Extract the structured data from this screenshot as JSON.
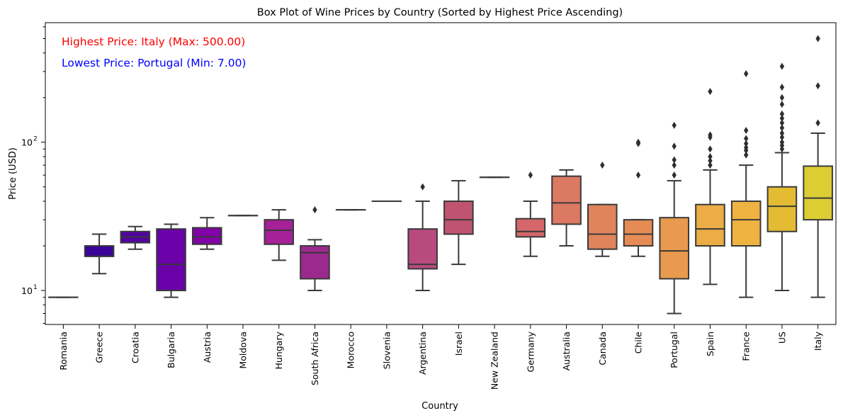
{
  "chart_data": {
    "type": "box",
    "title": "Box Plot of Wine Prices by Country (Sorted by Highest Price Ascending)",
    "xlabel": "Country",
    "ylabel": "Price (USD)",
    "yscale": "log",
    "ylim": [
      5.9,
      640
    ],
    "yticks": [
      {
        "value": 10,
        "base": "10",
        "exp": "1"
      },
      {
        "value": 100,
        "base": "10",
        "exp": "2"
      }
    ],
    "grid": false,
    "annotations": [
      {
        "text": "Highest Price: Italy (Max: 500.00)",
        "color": "#ff0000"
      },
      {
        "text": "Lowest Price: Portugal (Min: 7.00)",
        "color": "#0000ff"
      }
    ],
    "categories": [
      "Romania",
      "Greece",
      "Croatia",
      "Bulgaria",
      "Austria",
      "Moldova",
      "Hungary",
      "South Africa",
      "Morocco",
      "Slovenia",
      "Argentina",
      "Israel",
      "New Zealand",
      "Germany",
      "Australia",
      "Canada",
      "Chile",
      "Portugal",
      "Spain",
      "France",
      "US",
      "Italy"
    ],
    "boxes": [
      {
        "category": "Romania",
        "color": "#120787",
        "whislo": 9,
        "q1": 9,
        "med": 9,
        "q3": 9,
        "whishi": 9,
        "fliers": []
      },
      {
        "category": "Greece",
        "color": "#3a049a",
        "whislo": 13,
        "q1": 17,
        "med": 17,
        "q3": 20,
        "whishi": 24,
        "fliers": []
      },
      {
        "category": "Croatia",
        "color": "#5302a3",
        "whislo": 19,
        "q1": 21,
        "med": 23,
        "q3": 25,
        "whishi": 27,
        "fliers": []
      },
      {
        "category": "Bulgaria",
        "color": "#6a00a8",
        "whislo": 9,
        "q1": 10,
        "med": 15,
        "q3": 26,
        "whishi": 28,
        "fliers": []
      },
      {
        "category": "Austria",
        "color": "#8004a8",
        "whislo": 19,
        "q1": 20.5,
        "med": 23,
        "q3": 26.5,
        "whishi": 31,
        "fliers": []
      },
      {
        "category": "Moldova",
        "color": "#9511a1",
        "whislo": 32,
        "q1": 32,
        "med": 32,
        "q3": 32,
        "whishi": 32,
        "fliers": []
      },
      {
        "category": "Hungary",
        "color": "#a62098",
        "whislo": 16,
        "q1": 20.5,
        "med": 25.5,
        "q3": 30,
        "whishi": 35,
        "fliers": []
      },
      {
        "category": "South Africa",
        "color": "#9c2a8e",
        "whislo": 10,
        "q1": 12,
        "med": 18,
        "q3": 20,
        "whishi": 22,
        "fliers": [
          35
        ]
      },
      {
        "category": "Morocco",
        "color": "#a83a8a",
        "whislo": 35,
        "q1": 35,
        "med": 35,
        "q3": 35,
        "whishi": 35,
        "fliers": []
      },
      {
        "category": "Slovenia",
        "color": "#b23f86",
        "whislo": 40,
        "q1": 40,
        "med": 40,
        "q3": 40,
        "whishi": 40,
        "fliers": []
      },
      {
        "category": "Argentina",
        "color": "#b84a7e",
        "whislo": 10,
        "q1": 14,
        "med": 15,
        "q3": 26,
        "whishi": 40,
        "fliers": [
          50
        ]
      },
      {
        "category": "Israel",
        "color": "#c05470",
        "whislo": 15,
        "q1": 24,
        "med": 30,
        "q3": 40,
        "whishi": 55,
        "fliers": []
      },
      {
        "category": "New Zealand",
        "color": "#cc5a6b",
        "whislo": 58,
        "q1": 58,
        "med": 58,
        "q3": 58,
        "whishi": 58,
        "fliers": []
      },
      {
        "category": "Germany",
        "color": "#d5676a",
        "whislo": 17,
        "q1": 23,
        "med": 25,
        "q3": 30.5,
        "whishi": 40,
        "fliers": [
          60
        ]
      },
      {
        "category": "Australia",
        "color": "#dc7962",
        "whislo": 20,
        "q1": 28,
        "med": 39,
        "q3": 59,
        "whishi": 65,
        "fliers": []
      },
      {
        "category": "Canada",
        "color": "#e0845d",
        "whislo": 17,
        "q1": 19,
        "med": 24,
        "q3": 38,
        "whishi": 38,
        "fliers": [
          70
        ]
      },
      {
        "category": "Chile",
        "color": "#e58c55",
        "whislo": 17,
        "q1": 20,
        "med": 24,
        "q3": 30,
        "whishi": 30,
        "fliers": [
          60,
          98,
          100
        ]
      },
      {
        "category": "Portugal",
        "color": "#e99a4e",
        "whislo": 7,
        "q1": 12,
        "med": 18.5,
        "q3": 31,
        "whishi": 55,
        "fliers": [
          60,
          70,
          76,
          94,
          130
        ]
      },
      {
        "category": "Spain",
        "color": "#ecac46",
        "whislo": 11,
        "q1": 20,
        "med": 26,
        "q3": 38,
        "whishi": 65,
        "fliers": [
          70,
          75,
          80,
          90,
          108,
          112,
          220
        ]
      },
      {
        "category": "France",
        "color": "#efb342",
        "whislo": 9,
        "q1": 20,
        "med": 30,
        "q3": 40,
        "whishi": 70,
        "fliers": [
          82,
          88,
          92,
          98,
          106,
          120,
          290
        ]
      },
      {
        "category": "US",
        "color": "#e3bc34",
        "whislo": 10,
        "q1": 25,
        "med": 37,
        "q3": 50,
        "whishi": 85,
        "fliers": [
          90,
          95,
          100,
          108,
          115,
          125,
          135,
          145,
          155,
          180,
          200,
          235,
          325
        ]
      },
      {
        "category": "Italy",
        "color": "#dccd35",
        "whislo": 9,
        "q1": 30,
        "med": 42,
        "q3": 69,
        "whishi": 115,
        "fliers": [
          135,
          240,
          500
        ]
      }
    ]
  }
}
